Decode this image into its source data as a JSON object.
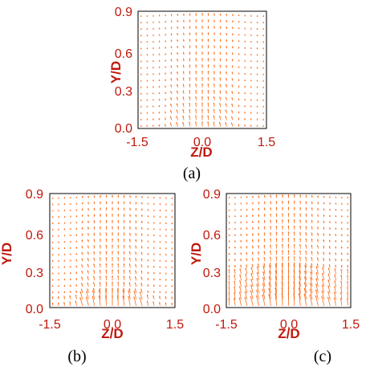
{
  "figure": {
    "colors": {
      "vectors": "#ff6a13",
      "axis_text": "#c0180c",
      "frame": "#000000",
      "caption": "#000000"
    }
  },
  "chart_data": [
    {
      "type": "quiver",
      "panel": "(a)",
      "xlabel": "Z/D",
      "ylabel": "Y/D",
      "xlim": [
        -1.5,
        1.5
      ],
      "ylim": [
        0.0,
        0.9
      ],
      "xticks": [
        "-1.5",
        "0.0",
        "1.5"
      ],
      "yticks": [
        "0.0",
        "0.3",
        "0.6",
        "0.9"
      ],
      "grid": false,
      "flow": {
        "jet_half_width": 0.75,
        "jet_strength": 0.35,
        "upwash": 0.55,
        "near_wall_band": 0.0
      }
    },
    {
      "type": "quiver",
      "panel": "(b)",
      "xlabel": "Z/D",
      "ylabel": "Y/D",
      "xlim": [
        -1.5,
        1.5
      ],
      "ylim": [
        0.0,
        0.9
      ],
      "xticks": [
        "-1.5",
        "0.0",
        "1.5"
      ],
      "yticks": [
        "0.0",
        "0.3",
        "0.6",
        "0.9"
      ],
      "grid": false,
      "flow": {
        "jet_half_width": 0.75,
        "jet_strength": 0.45,
        "upwash": 0.6,
        "near_wall_band": 0.06
      }
    },
    {
      "type": "quiver",
      "panel": "(c)",
      "xlabel": "Z/D",
      "ylabel": "Y/D",
      "xlim": [
        -1.5,
        1.5
      ],
      "ylim": [
        0.0,
        0.9
      ],
      "xticks": [
        "-1.5",
        "0.0",
        "1.5"
      ],
      "yticks": [
        "0.0",
        "0.3",
        "0.6",
        "0.9"
      ],
      "grid": false,
      "flow": {
        "jet_half_width": 1.5,
        "jet_strength": 0.6,
        "upwash": 0.7,
        "near_wall_band": 0.25
      }
    }
  ]
}
